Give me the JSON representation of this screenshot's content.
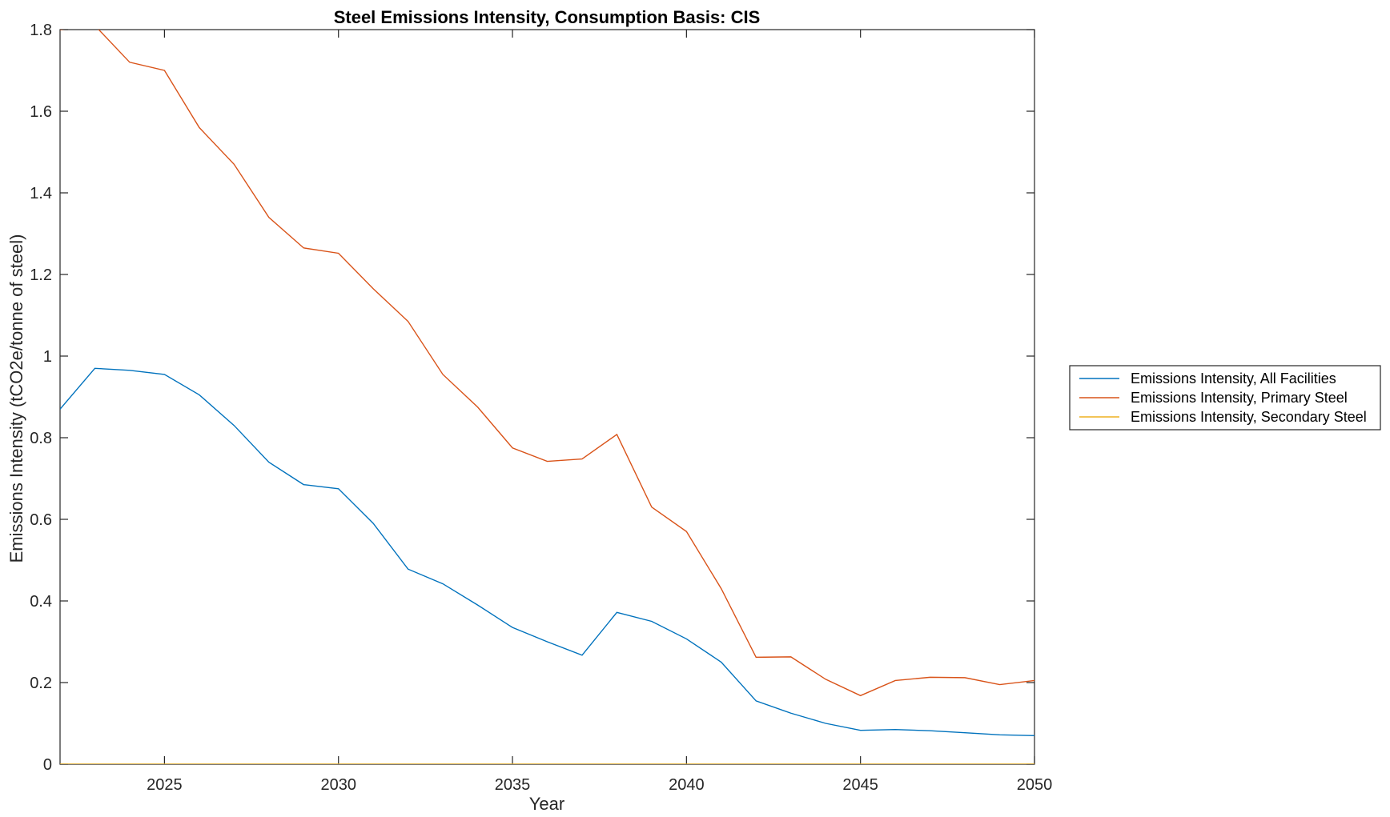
{
  "chart_data": {
    "type": "line",
    "title": "Steel Emissions Intensity, Consumption Basis: CIS",
    "xlabel": "Year",
    "ylabel": "Emissions Intensity (tCO2e/tonne of steel)",
    "xlim": [
      2022,
      2050
    ],
    "ylim": [
      0,
      1.8
    ],
    "xticks": [
      2025,
      2030,
      2035,
      2040,
      2045,
      2050
    ],
    "xtick_labels": [
      "2025",
      "2030",
      "2035",
      "2040",
      "2045",
      "2050"
    ],
    "yticks": [
      0,
      0.2,
      0.4,
      0.6,
      0.8,
      1.0,
      1.2,
      1.4,
      1.6,
      1.8
    ],
    "ytick_labels": [
      "0",
      "0.2",
      "0.4",
      "0.6",
      "0.8",
      "1",
      "1.2",
      "1.4",
      "1.6",
      "1.8"
    ],
    "grid": false,
    "legend_position": "outside-right",
    "x": [
      2022,
      2023,
      2024,
      2025,
      2026,
      2027,
      2028,
      2029,
      2030,
      2031,
      2032,
      2033,
      2034,
      2035,
      2036,
      2037,
      2038,
      2039,
      2040,
      2041,
      2042,
      2043,
      2044,
      2045,
      2046,
      2047,
      2048,
      2049,
      2050
    ],
    "series": [
      {
        "name": "Emissions Intensity, All Facilities",
        "color": "#0072BD",
        "values": [
          0.87,
          0.97,
          0.965,
          0.955,
          0.905,
          0.83,
          0.74,
          0.685,
          0.675,
          0.59,
          0.478,
          0.442,
          0.39,
          0.335,
          0.3,
          0.267,
          0.372,
          0.35,
          0.307,
          0.25,
          0.155,
          0.125,
          0.1,
          0.083,
          0.085,
          0.082,
          0.077,
          0.072,
          0.07
        ]
      },
      {
        "name": "Emissions Intensity, Primary Steel",
        "color": "#D95319",
        "values": [
          1.8,
          1.81,
          1.72,
          1.7,
          1.56,
          1.47,
          1.34,
          1.265,
          1.252,
          1.165,
          1.085,
          0.955,
          0.875,
          0.775,
          0.742,
          0.748,
          0.808,
          0.63,
          0.57,
          0.43,
          0.262,
          0.263,
          0.208,
          0.168,
          0.205,
          0.213,
          0.212,
          0.195,
          0.205
        ]
      },
      {
        "name": "Emissions Intensity, Secondary Steel",
        "color": "#EDB120",
        "values": [
          0,
          0,
          0,
          0,
          0,
          0,
          0,
          0,
          0,
          0,
          0,
          0,
          0,
          0,
          0,
          0,
          0,
          0,
          0,
          0,
          0,
          0,
          0,
          0,
          0,
          0,
          0,
          0,
          0
        ]
      }
    ]
  }
}
